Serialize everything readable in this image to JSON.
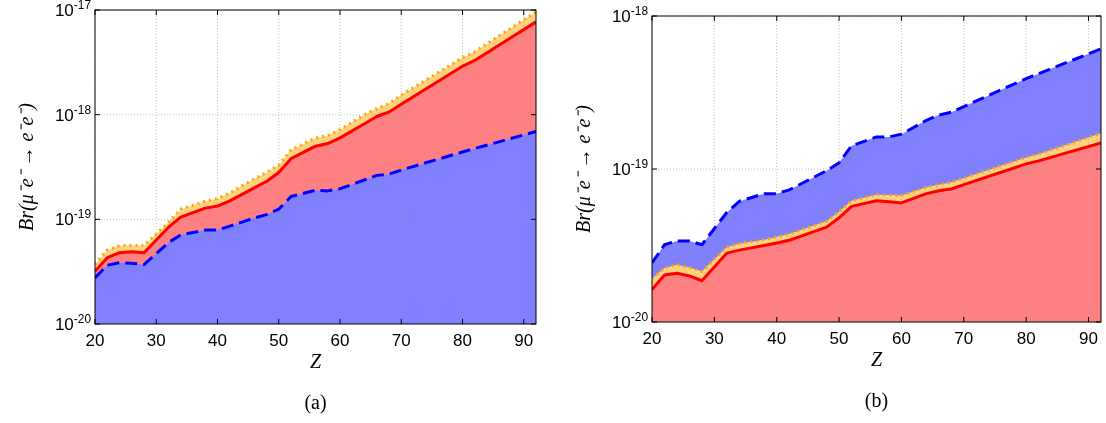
{
  "chart_data": [
    {
      "type": "area",
      "title": "(a)",
      "xlabel": "Z",
      "ylabel": "Br(μ⁻e⁻ → e⁻e⁻)",
      "log": "y",
      "grid": true,
      "x": [
        20,
        22,
        24,
        26,
        28,
        32,
        34,
        38,
        40,
        42,
        46,
        48,
        50,
        52,
        56,
        58,
        60,
        64,
        66,
        68,
        70,
        80,
        82,
        92
      ],
      "xlim": [
        20,
        92
      ],
      "xticks": [
        20,
        30,
        40,
        50,
        60,
        70,
        80,
        90
      ],
      "ylim": [
        1e-20,
        1e-17
      ],
      "yticks": [
        {
          "value": 1e-20,
          "label": "10$^{-20}$"
        },
        {
          "value": 1e-19,
          "label": "10$^{-19}$"
        },
        {
          "value": 1e-18,
          "label": "10$^{-18}$"
        },
        {
          "value": 1e-17,
          "label": "10$^{-17}$"
        }
      ],
      "series": [
        {
          "color": "#ffa500",
          "line_style": "dotted",
          "values": [
            3.7e-20,
            5.1e-20,
            5.6e-20,
            5.65e-20,
            5.6e-20,
            9.4e-20,
            1.25e-19,
            1.49e-19,
            1.58e-19,
            1.78e-19,
            2.44e-19,
            2.8e-19,
            3.3e-19,
            4.6e-19,
            6e-19,
            6.3e-19,
            7.2e-19,
            1e-18,
            1.14e-18,
            1.28e-18,
            1.54e-18,
            3.5e-18,
            4e-18,
            9.6e-18
          ]
        },
        {
          "color": "#ff0000",
          "line_style": "solid",
          "values": [
            3.2e-20,
            4.3e-20,
            4.8e-20,
            4.9e-20,
            4.8e-20,
            8.4e-20,
            1.05e-19,
            1.28e-19,
            1.34e-19,
            1.5e-19,
            2e-19,
            2.3e-19,
            2.8e-19,
            3.8e-19,
            5e-19,
            5.3e-19,
            6e-19,
            8.2e-19,
            9.6e-19,
            1.06e-18,
            1.26e-18,
            2.9e-18,
            3.3e-18,
            7.7e-18
          ]
        },
        {
          "color": "#0000ff",
          "line_style": "dashed",
          "values": [
            2.75e-20,
            3.65e-20,
            3.85e-20,
            3.8e-20,
            3.7e-20,
            6e-20,
            7.1e-20,
            7.9e-20,
            7.9e-20,
            8.6e-20,
            1.03e-19,
            1.11e-19,
            1.25e-19,
            1.65e-19,
            1.9e-19,
            1.87e-19,
            1.96e-19,
            2.38e-19,
            2.63e-19,
            2.7e-19,
            2.96e-19,
            4.4e-19,
            4.75e-19,
            6.9e-19
          ]
        }
      ]
    },
    {
      "type": "area",
      "title": "(b)",
      "xlabel": "Z",
      "ylabel": "Br(μ⁻e⁻ → e⁻e⁻)",
      "log": "y",
      "grid": true,
      "x": [
        20,
        22,
        24,
        26,
        28,
        32,
        34,
        38,
        40,
        42,
        48,
        50,
        52,
        56,
        58,
        60,
        64,
        66,
        68,
        70,
        80,
        82,
        92
      ],
      "xlim": [
        20,
        92
      ],
      "xticks": [
        20,
        30,
        40,
        50,
        60,
        70,
        80,
        90
      ],
      "ylim": [
        1e-20,
        1e-18
      ],
      "yticks": [
        {
          "value": 1e-20,
          "label": "10$^{-20}$"
        },
        {
          "value": 1e-19,
          "label": "10$^{-19}$"
        },
        {
          "value": 1e-18,
          "label": "10$^{-18}$"
        }
      ],
      "series": [
        {
          "color": "#0000ff",
          "line_style": "dashed",
          "values": [
            2.43e-20,
            3.2e-20,
            3.39e-20,
            3.39e-20,
            3.2e-20,
            5.2e-20,
            6.15e-20,
            6.9e-20,
            6.9e-20,
            7.3e-20,
            9.75e-20,
            1.1e-19,
            1.42e-19,
            1.62e-19,
            1.62e-19,
            1.69e-19,
            2.08e-19,
            2.25e-19,
            2.35e-19,
            2.56e-19,
            3.9e-19,
            4.2e-19,
            6.1e-19
          ]
        },
        {
          "color": "#ffa500",
          "line_style": "dotted",
          "values": [
            1.92e-20,
            2.25e-20,
            2.37e-20,
            2.27e-20,
            2.14e-20,
            3.08e-20,
            3.25e-20,
            3.45e-20,
            3.6e-20,
            3.76e-20,
            4.56e-20,
            5.25e-20,
            6.2e-20,
            6.8e-20,
            6.75e-20,
            6.7e-20,
            7.6e-20,
            7.9e-20,
            8.2e-20,
            8.7e-20,
            1.19e-19,
            1.25e-19,
            1.71e-19
          ]
        },
        {
          "color": "#ff0000",
          "line_style": "solid",
          "values": [
            1.63e-20,
            2.03e-20,
            2.08e-20,
            2e-20,
            1.86e-20,
            2.82e-20,
            2.95e-20,
            3.16e-20,
            3.28e-20,
            3.42e-20,
            4.17e-20,
            4.8e-20,
            5.7e-20,
            6.2e-20,
            6.1e-20,
            6e-20,
            6.9e-20,
            7.2e-20,
            7.4e-20,
            7.9e-20,
            1.08e-19,
            1.13e-19,
            1.48e-19
          ]
        }
      ]
    }
  ]
}
